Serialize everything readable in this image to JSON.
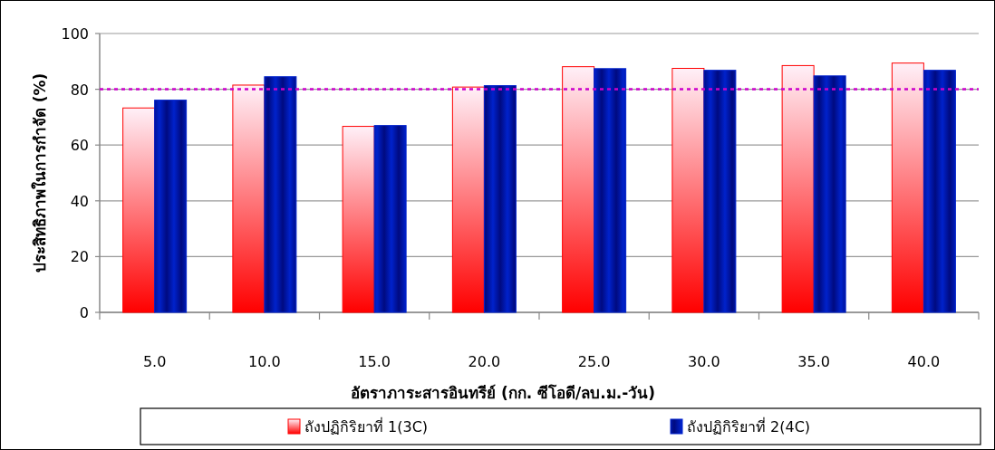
{
  "chart_data": {
    "type": "bar",
    "xlabel": "อัตราภาระสารอินทรีย์ (กก. ซีโอดี/ลบ.ม.-วัน)",
    "ylabel": "ประสิทธิภาพในการกำจัด (%)",
    "categories": [
      "5.0",
      "10.0",
      "15.0",
      "20.0",
      "25.0",
      "30.0",
      "35.0",
      "40.0"
    ],
    "series": [
      {
        "name": "ถังปฏิกิริยาที่ 1(3C)",
        "color": "#ff0000",
        "values": [
          73.3,
          81.5,
          66.7,
          80.8,
          88.1,
          87.5,
          88.5,
          89.4
        ]
      },
      {
        "name": "ถังปฏิกิริยาที่ 2(4C)",
        "color": "#0022cc",
        "values": [
          76.1,
          84.5,
          67.0,
          81.3,
          87.4,
          86.8,
          84.8,
          86.8
        ]
      }
    ],
    "ylim": [
      0,
      100
    ],
    "yticks": [
      0,
      20,
      40,
      60,
      80,
      100
    ],
    "ref_lines": [
      {
        "axis": "y",
        "value": 80,
        "color": "#cc00cc",
        "line_style": "dotted"
      }
    ],
    "grid": "y",
    "legend": "bottom"
  }
}
